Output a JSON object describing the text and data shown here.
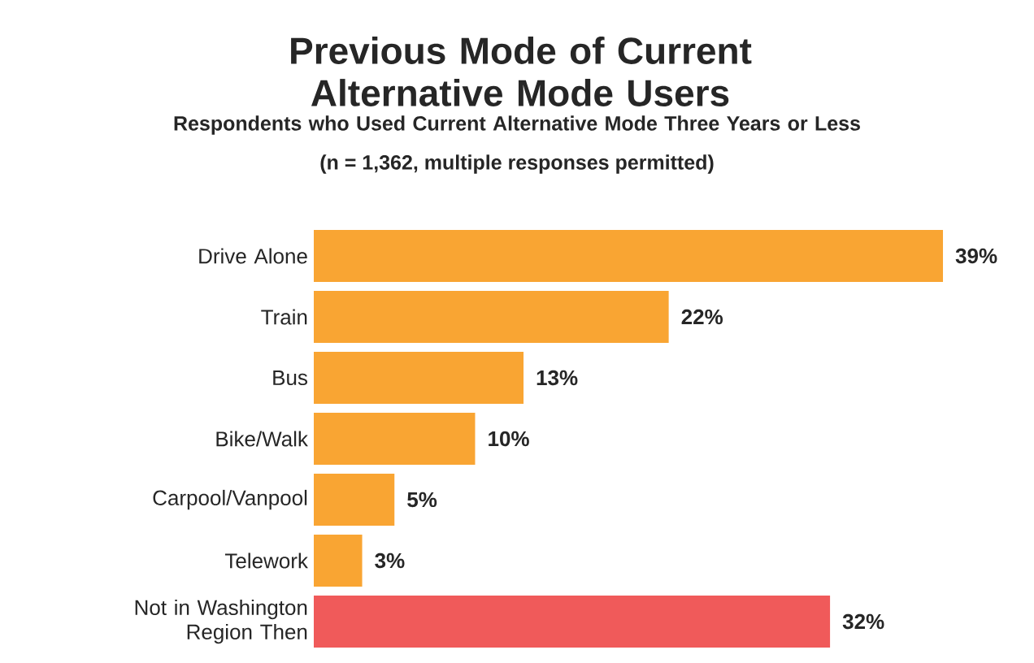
{
  "chart_data": {
    "type": "bar",
    "orientation": "horizontal",
    "title": "Previous Mode of Current Alternative Mode Users",
    "subtitle": "Respondents who Used Current Alternative Mode Three Years or Less",
    "annotations": [
      "(n = 1,362, multiple responses permitted)"
    ],
    "categories": [
      "Drive Alone",
      "Train",
      "Bus",
      "Bike/Walk",
      "Carpool/Vanpool",
      "Telework",
      "Not in Washington Region Then"
    ],
    "values": [
      39,
      22,
      13,
      10,
      5,
      3,
      32
    ],
    "value_labels": [
      "39%",
      "22%",
      "13%",
      "10%",
      "5%",
      "3%",
      "32%"
    ],
    "colors": [
      "#f9a533",
      "#f9a533",
      "#f9a533",
      "#f9a533",
      "#f9a533",
      "#f9a533",
      "#f05a5a"
    ]
  }
}
